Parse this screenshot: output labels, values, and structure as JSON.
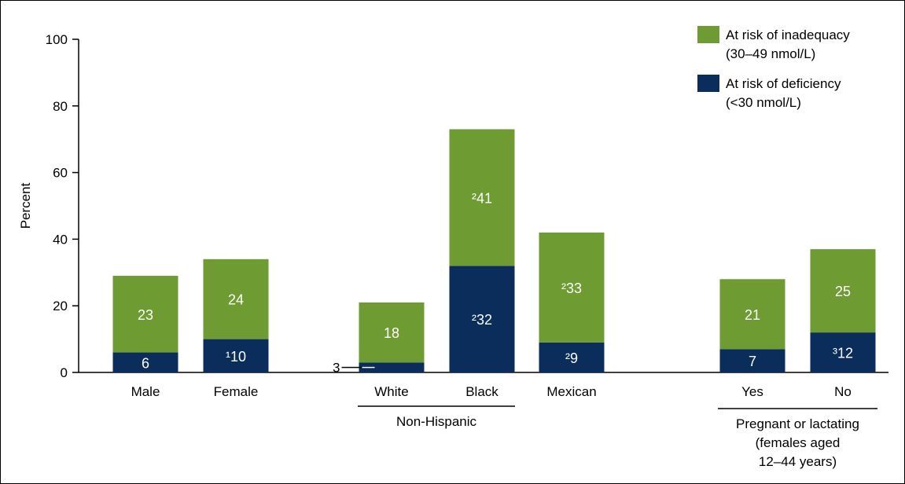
{
  "chart_data": {
    "type": "bar",
    "stacked": true,
    "ylabel": "Percent",
    "ylim": [
      0,
      100
    ],
    "yticks": [
      0,
      20,
      40,
      60,
      80,
      100
    ],
    "grid": false,
    "legend_position": "top-right",
    "categories": [
      "Male",
      "Female",
      "White",
      "Black",
      "Mexican",
      "Yes",
      "No"
    ],
    "groups": [
      {
        "label": "",
        "categories": [
          "Male",
          "Female"
        ]
      },
      {
        "label": "Non-Hispanic",
        "categories": [
          "White",
          "Black"
        ]
      },
      {
        "label": "",
        "categories": [
          "Mexican"
        ]
      },
      {
        "label_lines": [
          "Pregnant or lactating",
          "(females aged",
          "12–44 years)"
        ],
        "categories": [
          "Yes",
          "No"
        ]
      }
    ],
    "series": [
      {
        "name_lines": [
          "At risk of deficiency",
          "(<30 nmol/L)"
        ],
        "color": "#0b2d5b",
        "values": [
          6,
          10,
          3,
          32,
          9,
          7,
          12
        ],
        "labels": [
          "6",
          "¹10",
          "3",
          "²32",
          "²9",
          "7",
          "³12"
        ]
      },
      {
        "name_lines": [
          "At risk of inadequacy",
          "(30–49 nmol/L)"
        ],
        "color": "#6f9b33",
        "values": [
          23,
          24,
          18,
          41,
          33,
          21,
          25
        ],
        "labels": [
          "23",
          "24",
          "18",
          "²41",
          "²33",
          "21",
          "25"
        ]
      }
    ]
  }
}
